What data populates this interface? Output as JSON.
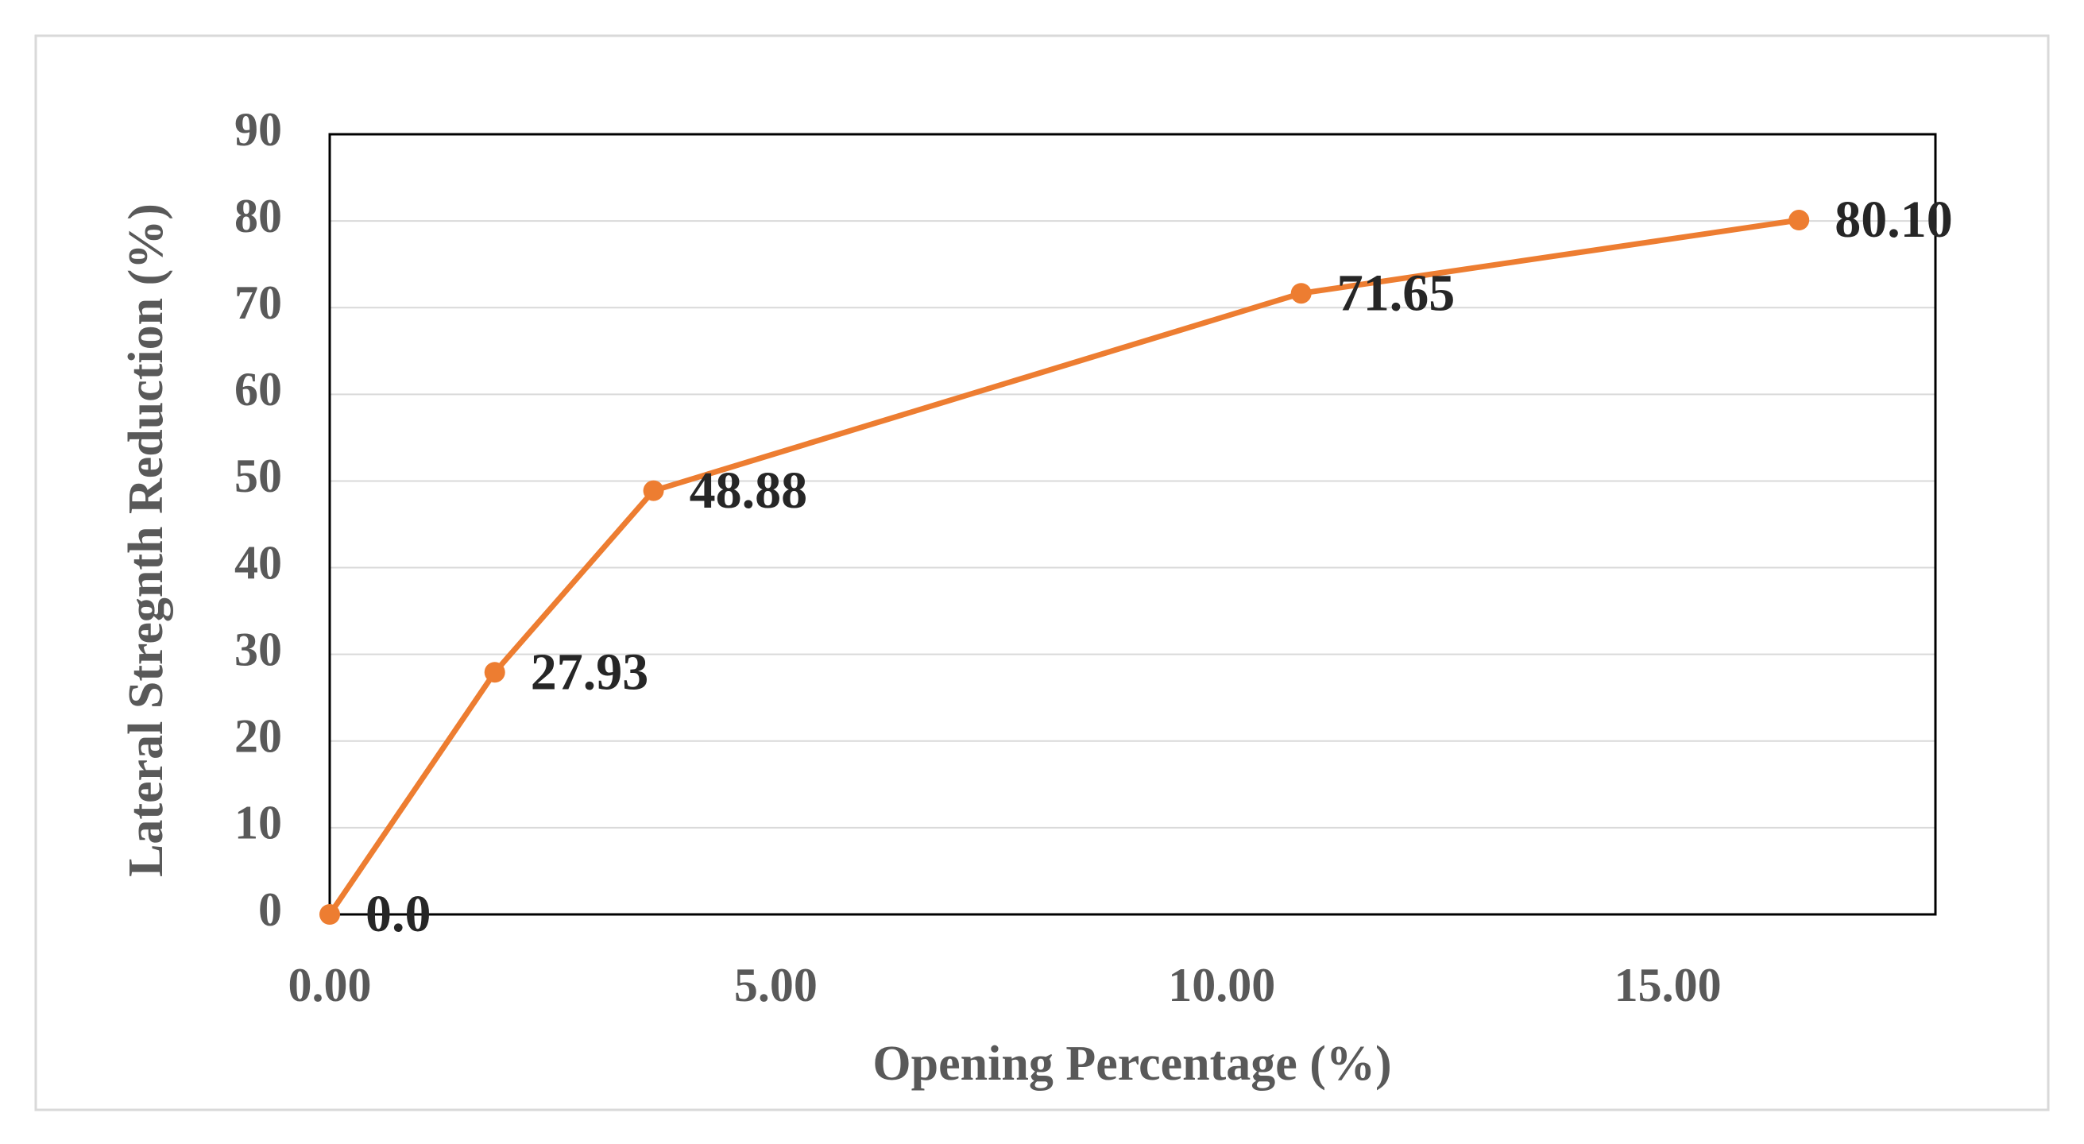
{
  "chart_data": {
    "type": "line",
    "x_label": "Opening Percentage (%)",
    "y_label": "Lateral Stregnth Reduction (%)",
    "x": [
      0,
      1.85,
      3.63,
      10.89,
      16.47
    ],
    "series": [
      {
        "color": "#ed7d31",
        "values": [
          0,
          27.93,
          48.88,
          71.65,
          80.1
        ],
        "value_labels": [
          "0.0",
          "27.93",
          "48.88",
          "71.65",
          "80.10"
        ]
      }
    ],
    "xlim": [
      0,
      18
    ],
    "xticks": [
      {
        "value": 0,
        "label": "0.00"
      },
      {
        "value": 5,
        "label": "5.00"
      },
      {
        "value": 10,
        "label": "10.00"
      },
      {
        "value": 15,
        "label": "15.00"
      }
    ],
    "ylim": [
      0,
      90
    ],
    "yticks": [
      0,
      10,
      20,
      30,
      40,
      50,
      60,
      70,
      80,
      90
    ],
    "grid": true
  }
}
